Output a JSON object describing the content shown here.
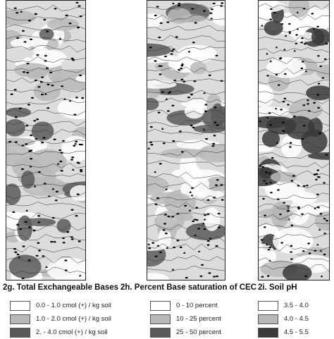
{
  "panels": [
    {
      "id": "g",
      "title": "2g. Total Exchangeable Bases",
      "legend": [
        {
          "label": "0.0 - 1.0 cmol (+) / kg soil",
          "color": "#ffffff"
        },
        {
          "label": "1.0 - 2.0 cmol (+) / kg soil",
          "color": "#b8b8b8"
        },
        {
          "label": "2. - 4.0 cmol (+) / kg soil",
          "color": "#5a5a5a"
        }
      ]
    },
    {
      "id": "h",
      "title": "2h. Percent Base saturation of CEC",
      "legend": [
        {
          "label": "0 - 10 percent",
          "color": "#ffffff"
        },
        {
          "label": "10 - 25 percent",
          "color": "#b8b8b8"
        },
        {
          "label": "25 - 50 percent",
          "color": "#5a5a5a"
        }
      ]
    },
    {
      "id": "i",
      "title": "2i. Soil pH",
      "legend": [
        {
          "label": "3.5 - 4.0",
          "color": "#ffffff"
        },
        {
          "label": "4.0 - 4.5",
          "color": "#b8b8b8"
        },
        {
          "label": "4.5 - 5.5",
          "color": "#3a3a3a"
        }
      ]
    }
  ]
}
